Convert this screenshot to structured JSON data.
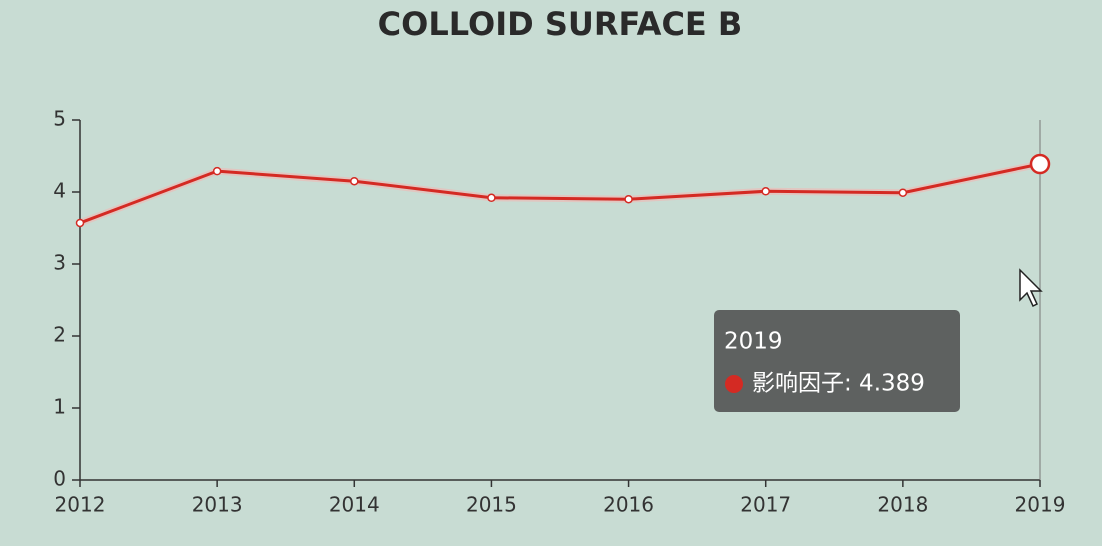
{
  "chart_data": {
    "type": "line",
    "title": "COLLOID SURFACE B",
    "categories": [
      "2012",
      "2013",
      "2014",
      "2015",
      "2016",
      "2017",
      "2018",
      "2019"
    ],
    "series": [
      {
        "name": "影响因子",
        "color": "#d42a23",
        "values": [
          3.57,
          4.29,
          4.15,
          3.92,
          3.9,
          4.01,
          3.99,
          4.389
        ]
      }
    ],
    "ylim": [
      0,
      5
    ],
    "yticks": [
      0,
      1,
      2,
      3,
      4,
      5
    ],
    "grid": false,
    "tooltip": {
      "title": "2019",
      "text": "影响因子: 4.389"
    }
  }
}
